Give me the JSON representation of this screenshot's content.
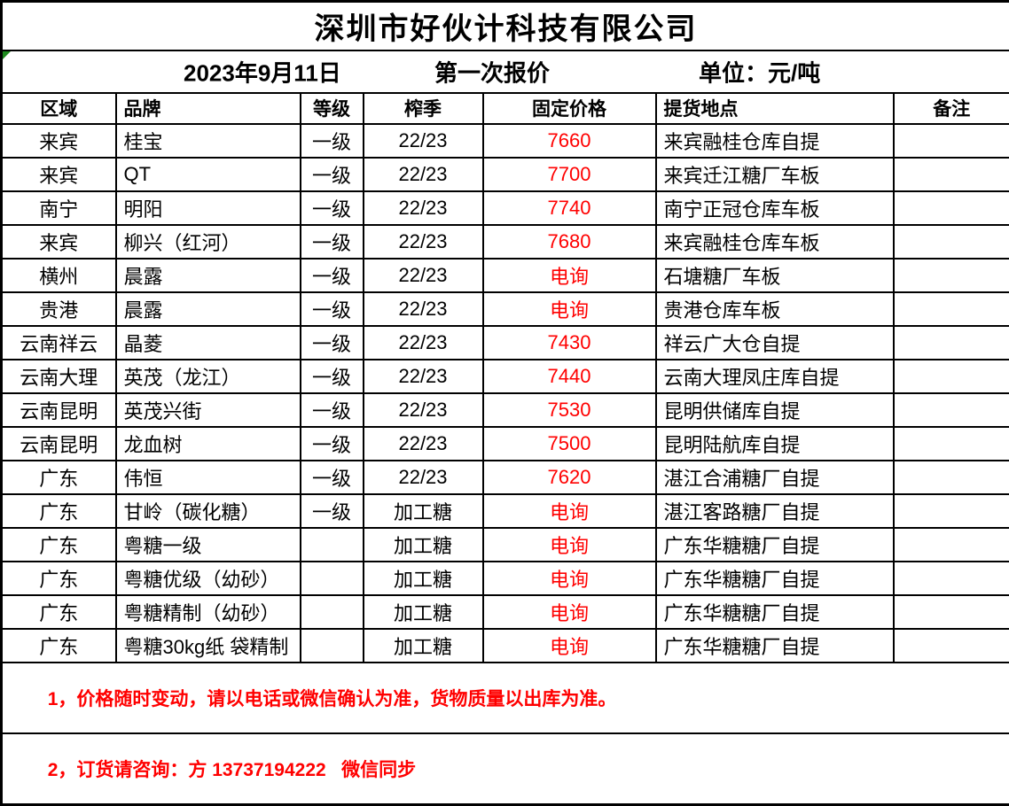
{
  "title": "深圳市好伙计科技有限公司",
  "meta": {
    "date": "2023年9月11日",
    "session": "第一次报价",
    "unit": "单位：元/吨"
  },
  "colors": {
    "price_red": "#ff0000",
    "note_red": "#ff0000",
    "error_indicator_green": "#1f8b1f",
    "border_black": "#000000"
  },
  "table": {
    "headers": [
      "区域",
      "品牌",
      "等级",
      "榨季",
      "固定价格",
      "提货地点",
      "备注"
    ],
    "rows": [
      [
        "来宾",
        "桂宝",
        "一级",
        "22/23",
        "7660",
        "来宾融桂仓库自提",
        ""
      ],
      [
        "来宾",
        "QT",
        "一级",
        "22/23",
        "7700",
        "来宾迁江糖厂车板",
        ""
      ],
      [
        "南宁",
        "明阳",
        "一级",
        "22/23",
        "7740",
        "南宁正冠仓库车板",
        ""
      ],
      [
        "来宾",
        "柳兴（红河）",
        "一级",
        "22/23",
        "7680",
        "来宾融桂仓库车板",
        ""
      ],
      [
        "横州",
        "晨露",
        "一级",
        "22/23",
        "电询",
        "石塘糖厂车板",
        ""
      ],
      [
        "贵港",
        "晨露",
        "一级",
        "22/23",
        "电询",
        "贵港仓库车板",
        ""
      ],
      [
        "云南祥云",
        "晶菱",
        "一级",
        "22/23",
        "7430",
        "祥云广大仓自提",
        ""
      ],
      [
        "云南大理",
        "英茂（龙江）",
        "一级",
        "22/23",
        "7440",
        "云南大理凤庄库自提",
        ""
      ],
      [
        "云南昆明",
        "英茂兴街",
        "一级",
        "22/23",
        "7530",
        "昆明供储库自提",
        ""
      ],
      [
        "云南昆明",
        "龙血树",
        "一级",
        "22/23",
        "7500",
        "昆明陆航库自提",
        ""
      ],
      [
        "广东",
        "伟恒",
        "一级",
        "22/23",
        "7620",
        "湛江合浦糖厂自提",
        ""
      ],
      [
        "广东",
        "甘岭（碳化糖）",
        "一级",
        "加工糖",
        "电询",
        "湛江客路糖厂自提",
        ""
      ],
      [
        "广东",
        "粤糖一级",
        "",
        "加工糖",
        "电询",
        "广东华糖糖厂自提",
        ""
      ],
      [
        "广东",
        "粤糖优级（幼砂）",
        "",
        "加工糖",
        "电询",
        "广东华糖糖厂自提",
        ""
      ],
      [
        "广东",
        "粤糖精制（幼砂）",
        "",
        "加工糖",
        "电询",
        "广东华糖糖厂自提",
        ""
      ],
      [
        "广东",
        "粤糖30kg纸 袋精制",
        "",
        "加工糖",
        "电询",
        "广东华糖糖厂自提",
        ""
      ]
    ]
  },
  "notes": [
    "1，价格随时变动，请以电话或微信确认为准，货物质量以出库为准。",
    "2，订货请咨询：方 13737194222   微信同步"
  ]
}
